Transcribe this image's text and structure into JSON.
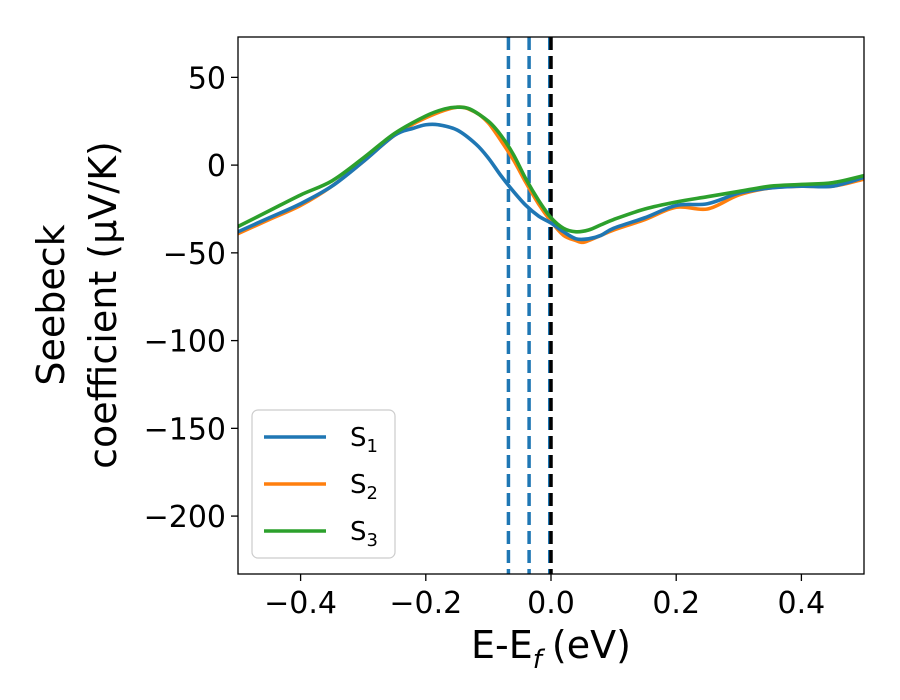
{
  "chart_data": {
    "type": "line",
    "xlabel": "E-E",
    "xlabel_sub": "f",
    "xlabel_unit": "(eV)",
    "ylabel_line1": "Seebeck",
    "ylabel_line2": "coefficient  (μV/K)",
    "xlim": [
      -0.5,
      0.5
    ],
    "ylim": [
      -233,
      73
    ],
    "xticks": [
      -0.4,
      -0.2,
      0.0,
      0.2,
      0.4
    ],
    "xtick_labels": [
      "−0.4",
      "−0.2",
      "0.0",
      "0.2",
      "0.4"
    ],
    "yticks": [
      50,
      0,
      -50,
      -100,
      -150,
      -200
    ],
    "ytick_labels": [
      "50",
      "0",
      "−50",
      "−100",
      "−150",
      "−200"
    ],
    "legend_position": "lower-left",
    "vlines": [
      {
        "x": -0.068,
        "style": "dashed",
        "color": "#1f77b4"
      },
      {
        "x": -0.035,
        "style": "dashed",
        "color": "#1f77b4"
      },
      {
        "x": -0.002,
        "style": "dashed",
        "color": "#1f77b4"
      },
      {
        "x": 0.0,
        "style": "dashed",
        "color": "#000000"
      }
    ],
    "series": [
      {
        "name": "S",
        "subscript": "1",
        "color": "#1f77b4",
        "x": [
          -0.5,
          -0.45,
          -0.4,
          -0.35,
          -0.3,
          -0.25,
          -0.22,
          -0.2,
          -0.18,
          -0.15,
          -0.12,
          -0.1,
          -0.08,
          -0.06,
          -0.04,
          -0.02,
          0.0,
          0.02,
          0.04,
          0.06,
          0.08,
          0.1,
          0.15,
          0.2,
          0.25,
          0.3,
          0.35,
          0.4,
          0.45,
          0.5
        ],
        "y": [
          -38,
          -30,
          -22,
          -12,
          2,
          17,
          21,
          23,
          23,
          20,
          12,
          4,
          -6,
          -15,
          -23,
          -29,
          -33,
          -38,
          -42,
          -42,
          -40,
          -36,
          -30,
          -23,
          -22,
          -16,
          -13,
          -12,
          -12,
          -7
        ]
      },
      {
        "name": "S",
        "subscript": "2",
        "color": "#ff7f0e",
        "x": [
          -0.5,
          -0.45,
          -0.4,
          -0.35,
          -0.3,
          -0.25,
          -0.2,
          -0.15,
          -0.12,
          -0.1,
          -0.08,
          -0.06,
          -0.04,
          -0.02,
          0.0,
          0.02,
          0.04,
          0.05,
          0.06,
          0.08,
          0.1,
          0.15,
          0.2,
          0.25,
          0.3,
          0.35,
          0.4,
          0.45,
          0.5
        ],
        "y": [
          -39,
          -31,
          -23,
          -12,
          2,
          17,
          27,
          33,
          30,
          24,
          14,
          3,
          -10,
          -22,
          -32,
          -40,
          -43,
          -44,
          -43,
          -40,
          -37,
          -31,
          -24,
          -25,
          -17,
          -13,
          -12,
          -12,
          -8
        ]
      },
      {
        "name": "S",
        "subscript": "3",
        "color": "#2ca02c",
        "x": [
          -0.5,
          -0.45,
          -0.4,
          -0.35,
          -0.3,
          -0.25,
          -0.2,
          -0.17,
          -0.15,
          -0.13,
          -0.1,
          -0.08,
          -0.06,
          -0.04,
          -0.02,
          0.0,
          0.02,
          0.04,
          0.06,
          0.08,
          0.1,
          0.15,
          0.2,
          0.25,
          0.3,
          0.35,
          0.4,
          0.45,
          0.5
        ],
        "y": [
          -35,
          -26,
          -17,
          -9,
          4,
          18,
          28,
          32,
          33,
          32,
          25,
          17,
          6,
          -8,
          -20,
          -30,
          -36,
          -38,
          -37,
          -34,
          -31,
          -25,
          -21,
          -18,
          -15,
          -12,
          -11,
          -10,
          -6
        ]
      }
    ]
  }
}
